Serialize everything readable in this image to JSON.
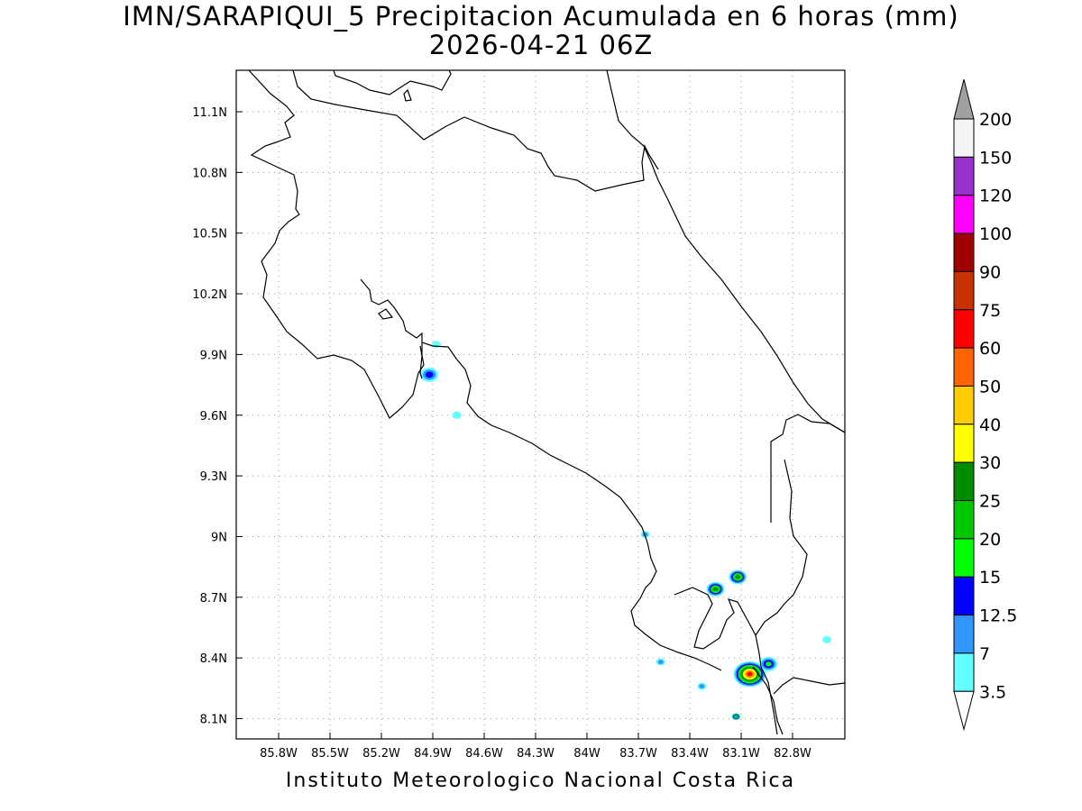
{
  "title": {
    "line1": "IMN/SARAPIQUI_5 Precipitacion Acumulada en 6 horas (mm)",
    "line2": "2026-04-21 06Z"
  },
  "footer": "Instituto Meteorologico Nacional Costa Rica",
  "axes": {
    "longitude_ticks": [
      "85.8W",
      "85.5W",
      "85.2W",
      "84.9W",
      "84.6W",
      "84.3W",
      "84W",
      "83.7W",
      "83.4W",
      "83.1W",
      "82.8W"
    ],
    "latitude_ticks": [
      "11.1N",
      "10.8N",
      "10.5N",
      "10.2N",
      "9.9N",
      "9.6N",
      "9.3N",
      "9N",
      "8.7N",
      "8.4N",
      "8.1N"
    ],
    "grid": "dotted"
  },
  "colorbar": {
    "labels": [
      "200",
      "150",
      "120",
      "100",
      "90",
      "75",
      "60",
      "50",
      "40",
      "30",
      "25",
      "20",
      "15",
      "12.5",
      "7",
      "3.5"
    ],
    "colors": [
      "#a0a0a0",
      "#f5f5f5",
      "#9932cc",
      "#ff00ff",
      "#a00000",
      "#c83200",
      "#ff0000",
      "#ff6400",
      "#ffcc00",
      "#ffff00",
      "#008c00",
      "#00c800",
      "#00ff00",
      "#0000ff",
      "#3296ff",
      "#64ffff",
      "#ffffff"
    ]
  },
  "precip_cells": [
    {
      "lon": -84.92,
      "lat": 9.8,
      "max_class": "12.5",
      "size": "small"
    },
    {
      "lon": -84.88,
      "lat": 9.95,
      "max_class": "3.5",
      "size": "tiny"
    },
    {
      "lon": -84.76,
      "lat": 9.6,
      "max_class": "3.5",
      "size": "tiny"
    },
    {
      "lon": -83.66,
      "lat": 9.01,
      "max_class": "7",
      "size": "tiny"
    },
    {
      "lon": -83.25,
      "lat": 8.74,
      "max_class": "25",
      "size": "small"
    },
    {
      "lon": -83.12,
      "lat": 8.8,
      "max_class": "25",
      "size": "small"
    },
    {
      "lon": -83.05,
      "lat": 8.32,
      "max_class": "60",
      "size": "medium"
    },
    {
      "lon": -82.94,
      "lat": 8.37,
      "max_class": "15",
      "size": "small"
    },
    {
      "lon": -83.13,
      "lat": 8.11,
      "max_class": "20",
      "size": "tiny"
    },
    {
      "lon": -83.57,
      "lat": 8.38,
      "max_class": "7",
      "size": "tiny"
    },
    {
      "lon": -83.33,
      "lat": 8.26,
      "max_class": "7",
      "size": "tiny"
    },
    {
      "lon": -82.6,
      "lat": 8.49,
      "max_class": "3.5",
      "size": "tiny"
    }
  ]
}
